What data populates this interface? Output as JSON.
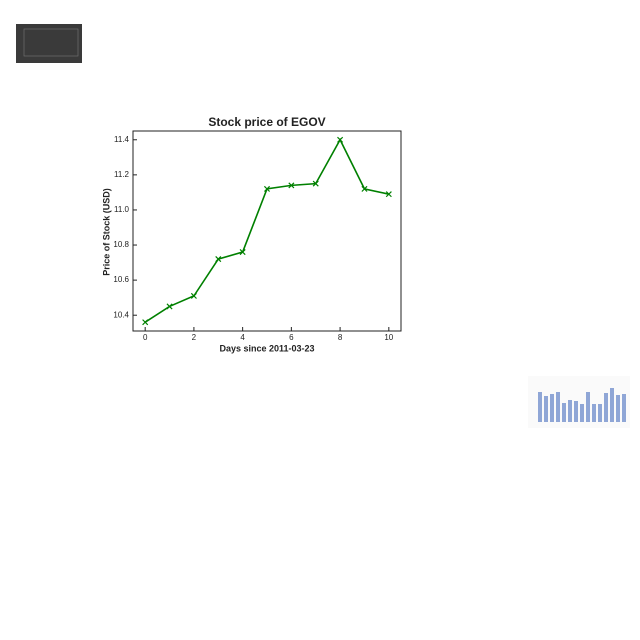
{
  "chart_data": {
    "type": "line",
    "title": "Stock price of EGOV",
    "xlabel": "Days since 2011-03-23",
    "ylabel": "Price of Stock (USD)",
    "x": [
      0,
      1,
      2,
      3,
      4,
      5,
      6,
      7,
      8,
      9,
      10
    ],
    "series": [
      {
        "name": "EGOV",
        "color": "#008000",
        "marker": "x",
        "values": [
          10.36,
          10.45,
          10.51,
          10.72,
          10.76,
          11.12,
          11.14,
          11.15,
          11.4,
          11.12,
          11.09
        ]
      }
    ],
    "xlim": [
      -0.5,
      10.5
    ],
    "xticks": [
      0,
      2,
      4,
      6,
      8,
      10
    ],
    "ylim": [
      10.31,
      11.45
    ],
    "yticks": [
      10.4,
      10.6,
      10.8,
      {
        "value": 11.0,
        "label": "11.0"
      },
      11.2,
      11.4
    ],
    "grid": false
  }
}
